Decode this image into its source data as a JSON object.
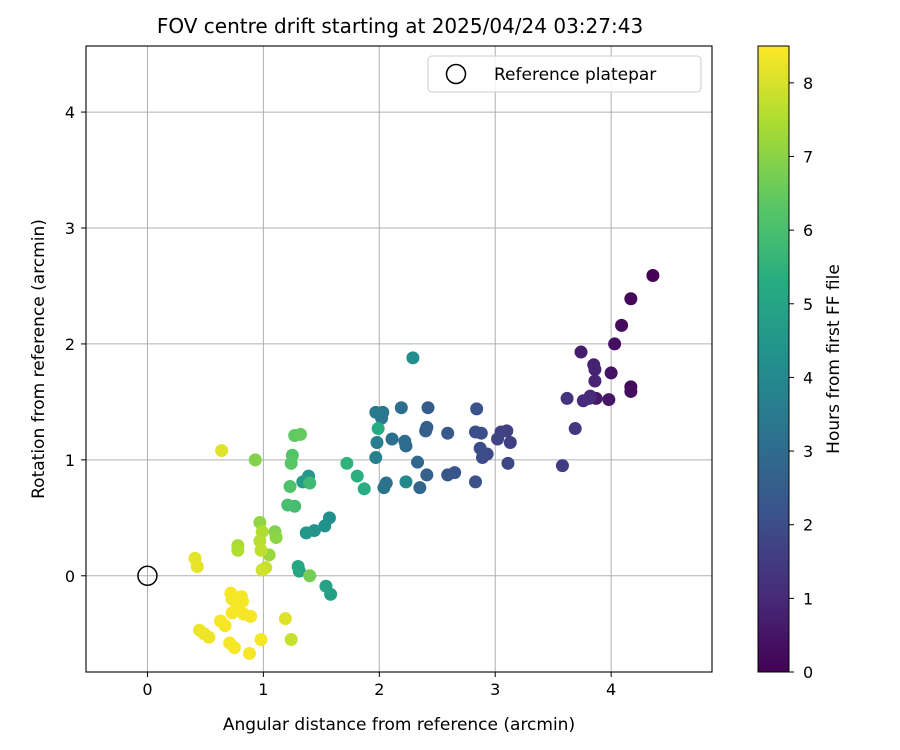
{
  "chart_data": {
    "type": "scatter",
    "title": "FOV centre drift starting at 2025/04/24 03:27:43",
    "xlabel": "Angular distance from reference (arcmin)",
    "ylabel": "Rotation from reference (arcmin)",
    "xlim": [
      -0.53,
      4.87
    ],
    "ylim": [
      -0.83,
      4.57
    ],
    "xticks": [
      0,
      1,
      2,
      3,
      4
    ],
    "yticks": [
      0,
      1,
      2,
      3,
      4
    ],
    "grid": true,
    "legend": {
      "position": "top-right",
      "entries": [
        "Reference platepar"
      ]
    },
    "reference_point": {
      "x": 0,
      "y": 0
    },
    "colorbar": {
      "label": "Hours from first FF file",
      "range": [
        0,
        8.5
      ],
      "ticks": [
        0,
        1,
        2,
        3,
        4,
        5,
        6,
        7,
        8
      ],
      "colormap": "viridis"
    },
    "points": [
      {
        "x": 4.36,
        "y": 2.59,
        "c": 0.05
      },
      {
        "x": 4.17,
        "y": 2.39,
        "c": 0.15
      },
      {
        "x": 4.09,
        "y": 2.16,
        "c": 0.25
      },
      {
        "x": 4.03,
        "y": 2.0,
        "c": 0.35
      },
      {
        "x": 4.17,
        "y": 1.63,
        "c": 0.2
      },
      {
        "x": 4.17,
        "y": 1.59,
        "c": 0.3
      },
      {
        "x": 4.0,
        "y": 1.75,
        "c": 0.45
      },
      {
        "x": 3.98,
        "y": 1.52,
        "c": 0.5
      },
      {
        "x": 3.87,
        "y": 1.53,
        "c": 0.6
      },
      {
        "x": 3.74,
        "y": 1.93,
        "c": 0.7
      },
      {
        "x": 3.85,
        "y": 1.82,
        "c": 0.8
      },
      {
        "x": 3.86,
        "y": 1.78,
        "c": 0.85
      },
      {
        "x": 3.86,
        "y": 1.68,
        "c": 0.9
      },
      {
        "x": 3.82,
        "y": 1.55,
        "c": 1.0
      },
      {
        "x": 3.76,
        "y": 1.51,
        "c": 1.05
      },
      {
        "x": 3.81,
        "y": 1.53,
        "c": 1.1
      },
      {
        "x": 3.62,
        "y": 1.53,
        "c": 1.3
      },
      {
        "x": 3.69,
        "y": 1.27,
        "c": 1.4
      },
      {
        "x": 3.58,
        "y": 0.95,
        "c": 1.5
      },
      {
        "x": 3.13,
        "y": 1.15,
        "c": 1.6
      },
      {
        "x": 3.1,
        "y": 1.25,
        "c": 1.65
      },
      {
        "x": 3.05,
        "y": 1.24,
        "c": 1.7
      },
      {
        "x": 3.02,
        "y": 1.18,
        "c": 1.75
      },
      {
        "x": 3.11,
        "y": 0.97,
        "c": 1.8
      },
      {
        "x": 2.93,
        "y": 1.05,
        "c": 1.9
      },
      {
        "x": 2.89,
        "y": 1.02,
        "c": 1.95
      },
      {
        "x": 2.87,
        "y": 1.1,
        "c": 2.0
      },
      {
        "x": 2.83,
        "y": 1.24,
        "c": 2.05
      },
      {
        "x": 2.88,
        "y": 1.23,
        "c": 2.1
      },
      {
        "x": 2.84,
        "y": 1.44,
        "c": 2.15
      },
      {
        "x": 2.83,
        "y": 0.81,
        "c": 2.2
      },
      {
        "x": 2.65,
        "y": 0.89,
        "c": 2.25
      },
      {
        "x": 2.59,
        "y": 0.87,
        "c": 2.3
      },
      {
        "x": 2.59,
        "y": 1.23,
        "c": 2.4
      },
      {
        "x": 2.42,
        "y": 1.45,
        "c": 2.5
      },
      {
        "x": 2.41,
        "y": 1.28,
        "c": 2.55
      },
      {
        "x": 2.4,
        "y": 1.25,
        "c": 2.6
      },
      {
        "x": 2.41,
        "y": 0.87,
        "c": 2.65
      },
      {
        "x": 2.35,
        "y": 0.76,
        "c": 2.8
      },
      {
        "x": 2.33,
        "y": 0.98,
        "c": 2.9
      },
      {
        "x": 2.23,
        "y": 1.12,
        "c": 3.0
      },
      {
        "x": 2.22,
        "y": 1.16,
        "c": 3.05
      },
      {
        "x": 2.19,
        "y": 1.45,
        "c": 3.1
      },
      {
        "x": 2.11,
        "y": 1.18,
        "c": 3.15
      },
      {
        "x": 2.06,
        "y": 0.8,
        "c": 3.2
      },
      {
        "x": 2.04,
        "y": 0.76,
        "c": 3.3
      },
      {
        "x": 2.03,
        "y": 1.41,
        "c": 3.35
      },
      {
        "x": 2.02,
        "y": 1.36,
        "c": 3.4
      },
      {
        "x": 1.97,
        "y": 1.41,
        "c": 3.45
      },
      {
        "x": 1.98,
        "y": 1.15,
        "c": 3.6
      },
      {
        "x": 1.97,
        "y": 1.02,
        "c": 3.7
      },
      {
        "x": 2.23,
        "y": 0.81,
        "c": 4.0
      },
      {
        "x": 2.29,
        "y": 1.88,
        "c": 4.1
      },
      {
        "x": 1.57,
        "y": 0.5,
        "c": 4.2
      },
      {
        "x": 1.53,
        "y": 0.43,
        "c": 4.3
      },
      {
        "x": 1.44,
        "y": 0.39,
        "c": 4.4
      },
      {
        "x": 1.37,
        "y": 0.37,
        "c": 4.5
      },
      {
        "x": 1.39,
        "y": 0.86,
        "c": 4.6
      },
      {
        "x": 1.34,
        "y": 0.81,
        "c": 4.7
      },
      {
        "x": 1.58,
        "y": -0.16,
        "c": 4.8
      },
      {
        "x": 1.54,
        "y": -0.09,
        "c": 4.9
      },
      {
        "x": 1.31,
        "y": 0.04,
        "c": 5.0
      },
      {
        "x": 1.3,
        "y": 0.08,
        "c": 5.1
      },
      {
        "x": 1.99,
        "y": 1.27,
        "c": 5.2
      },
      {
        "x": 1.87,
        "y": 0.75,
        "c": 5.3
      },
      {
        "x": 1.81,
        "y": 0.86,
        "c": 5.4
      },
      {
        "x": 1.72,
        "y": 0.97,
        "c": 5.5
      },
      {
        "x": 1.4,
        "y": 0.8,
        "c": 5.8
      },
      {
        "x": 1.27,
        "y": 0.6,
        "c": 5.9
      },
      {
        "x": 1.21,
        "y": 0.61,
        "c": 6.0
      },
      {
        "x": 1.23,
        "y": 0.77,
        "c": 6.1
      },
      {
        "x": 1.25,
        "y": 1.04,
        "c": 6.2
      },
      {
        "x": 1.24,
        "y": 0.97,
        "c": 6.3
      },
      {
        "x": 1.27,
        "y": 1.21,
        "c": 6.4
      },
      {
        "x": 1.32,
        "y": 1.22,
        "c": 6.5
      },
      {
        "x": 1.4,
        "y": 0.0,
        "c": 6.7
      },
      {
        "x": 0.93,
        "y": 1.0,
        "c": 6.9
      },
      {
        "x": 1.1,
        "y": 0.38,
        "c": 6.9
      },
      {
        "x": 1.11,
        "y": 0.33,
        "c": 7.0
      },
      {
        "x": 0.97,
        "y": 0.46,
        "c": 7.1
      },
      {
        "x": 1.05,
        "y": 0.18,
        "c": 7.2
      },
      {
        "x": 0.78,
        "y": 0.26,
        "c": 7.4
      },
      {
        "x": 0.78,
        "y": 0.22,
        "c": 7.5
      },
      {
        "x": 0.99,
        "y": 0.38,
        "c": 7.5
      },
      {
        "x": 0.97,
        "y": 0.3,
        "c": 7.6
      },
      {
        "x": 0.98,
        "y": 0.22,
        "c": 7.7
      },
      {
        "x": 1.02,
        "y": 0.07,
        "c": 7.8
      },
      {
        "x": 0.99,
        "y": 0.05,
        "c": 7.9
      },
      {
        "x": 1.24,
        "y": -0.55,
        "c": 7.8
      },
      {
        "x": 1.19,
        "y": -0.37,
        "c": 8.1
      },
      {
        "x": 0.64,
        "y": 1.08,
        "c": 8.1
      },
      {
        "x": 0.41,
        "y": 0.15,
        "c": 8.2
      },
      {
        "x": 0.43,
        "y": 0.08,
        "c": 8.2
      },
      {
        "x": 0.45,
        "y": -0.47,
        "c": 8.3
      },
      {
        "x": 0.49,
        "y": -0.5,
        "c": 8.3
      },
      {
        "x": 0.53,
        "y": -0.53,
        "c": 8.3
      },
      {
        "x": 0.63,
        "y": -0.39,
        "c": 8.4
      },
      {
        "x": 0.67,
        "y": -0.43,
        "c": 8.4
      },
      {
        "x": 0.71,
        "y": -0.58,
        "c": 8.4
      },
      {
        "x": 0.75,
        "y": -0.62,
        "c": 8.4
      },
      {
        "x": 0.72,
        "y": -0.15,
        "c": 8.4
      },
      {
        "x": 0.73,
        "y": -0.2,
        "c": 8.4
      },
      {
        "x": 0.77,
        "y": -0.25,
        "c": 8.4
      },
      {
        "x": 0.81,
        "y": -0.18,
        "c": 8.4
      },
      {
        "x": 0.82,
        "y": -0.22,
        "c": 8.4
      },
      {
        "x": 0.73,
        "y": -0.32,
        "c": 8.4
      },
      {
        "x": 0.83,
        "y": -0.33,
        "c": 8.4
      },
      {
        "x": 0.89,
        "y": -0.35,
        "c": 8.4
      },
      {
        "x": 0.98,
        "y": -0.55,
        "c": 8.4
      },
      {
        "x": 0.88,
        "y": -0.67,
        "c": 8.4
      }
    ]
  }
}
